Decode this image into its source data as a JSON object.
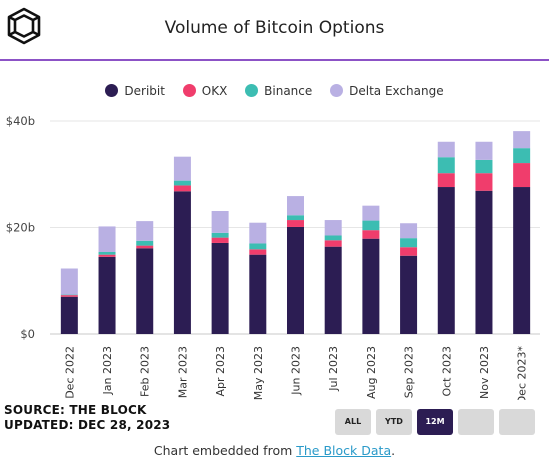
{
  "header": {
    "title": "Volume of Bitcoin Options"
  },
  "footer": {
    "source_line": "SOURCE: THE BLOCK",
    "updated_line": "UPDATED: DEC 28, 2023",
    "embed_prefix": "Chart embedded from ",
    "embed_link": "The Block Data",
    "embed_suffix": "."
  },
  "range_buttons": [
    {
      "label": "ALL",
      "active": false
    },
    {
      "label": "YTD",
      "active": false
    },
    {
      "label": "12M",
      "active": true
    },
    {
      "label": "",
      "active": false
    },
    {
      "label": "",
      "active": false
    }
  ],
  "colors": {
    "Deribit": "#2c1d53",
    "OKX": "#f03d6c",
    "Binance": "#3cbdb2",
    "Delta Exchange": "#b9b0e3",
    "accent": "#8c52c6"
  },
  "chart_data": {
    "type": "bar",
    "stacked": true,
    "title": "Volume of Bitcoin Options",
    "xlabel": "",
    "ylabel": "",
    "ylim": [
      0,
      40
    ],
    "y_ticks": [
      0,
      20,
      40
    ],
    "y_tick_labels": [
      "$0",
      "$20b",
      "$40b"
    ],
    "y_unit": "billion USD",
    "grid": true,
    "legend_position": "top-center",
    "categories": [
      "Dec 2022",
      "Jan 2023",
      "Feb 2023",
      "Mar 2023",
      "Apr 2023",
      "May 2023",
      "Jun 2023",
      "Jul 2023",
      "Aug 2023",
      "Sep 2023",
      "Oct 2023",
      "Nov 2023",
      "Dec 2023*"
    ],
    "series": [
      {
        "name": "Deribit",
        "values": [
          7.0,
          14.5,
          16.1,
          26.8,
          17.1,
          14.9,
          20.1,
          16.4,
          17.9,
          14.7,
          27.6,
          26.9,
          27.6
        ]
      },
      {
        "name": "OKX",
        "values": [
          0.3,
          0.4,
          0.5,
          1.1,
          1.0,
          1.0,
          1.3,
          1.2,
          1.6,
          1.6,
          2.6,
          3.3,
          4.5
        ]
      },
      {
        "name": "Binance",
        "values": [
          0.1,
          0.5,
          0.9,
          0.9,
          0.9,
          1.1,
          0.9,
          0.9,
          1.8,
          1.7,
          3.0,
          2.5,
          2.8
        ]
      },
      {
        "name": "Delta Exchange",
        "values": [
          4.9,
          4.8,
          3.7,
          4.5,
          4.1,
          3.9,
          3.6,
          2.9,
          2.8,
          2.8,
          2.9,
          3.4,
          3.2
        ]
      }
    ]
  }
}
